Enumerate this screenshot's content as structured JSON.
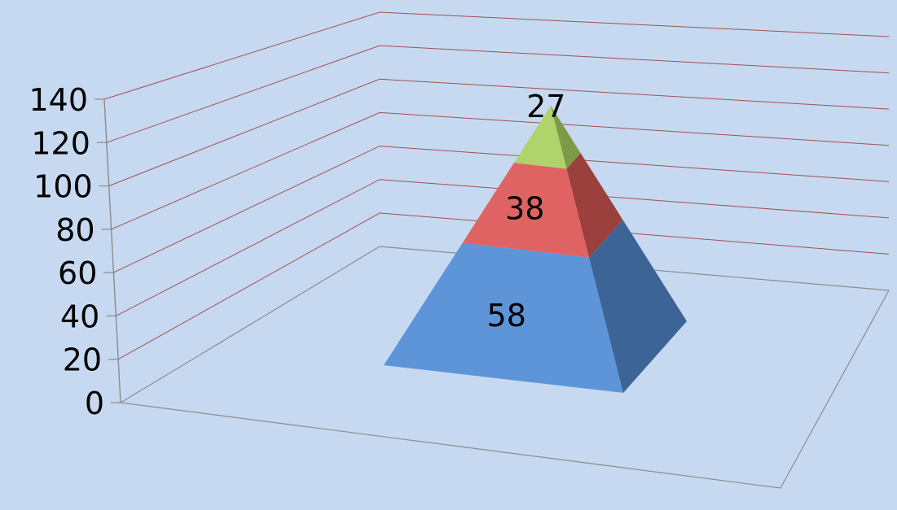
{
  "chart_data": {
    "type": "pyramid",
    "stacked": true,
    "ylim": [
      0,
      140
    ],
    "y_ticks": [
      "0",
      "20",
      "40",
      "60",
      "80",
      "100",
      "120",
      "140"
    ],
    "y_step": 20,
    "grid": true,
    "legend": "none",
    "series": [
      {
        "values": [
          58
        ],
        "color": "#5e95d9",
        "side_color": "#3d6497"
      },
      {
        "values": [
          38
        ],
        "color": "#e06363",
        "side_color": "#9c403d"
      },
      {
        "values": [
          27
        ],
        "color": "#b0d46b",
        "side_color": "#7d9a47"
      }
    ],
    "data_labels": [
      "58",
      "38",
      "27"
    ]
  },
  "colors": {
    "background": "#c6d9f1",
    "gridline": "#a05050",
    "axis": "#8c8c8c",
    "text": "#000000"
  }
}
